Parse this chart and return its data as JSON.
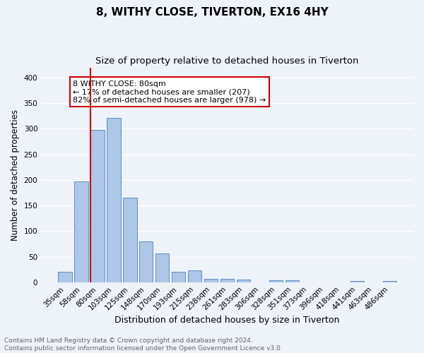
{
  "title": "8, WITHY CLOSE, TIVERTON, EX16 4HY",
  "subtitle": "Size of property relative to detached houses in Tiverton",
  "xlabel": "Distribution of detached houses by size in Tiverton",
  "ylabel": "Number of detached properties",
  "categories": [
    "35sqm",
    "58sqm",
    "80sqm",
    "103sqm",
    "125sqm",
    "148sqm",
    "170sqm",
    "193sqm",
    "215sqm",
    "238sqm",
    "261sqm",
    "283sqm",
    "306sqm",
    "328sqm",
    "351sqm",
    "373sqm",
    "396sqm",
    "418sqm",
    "441sqm",
    "463sqm",
    "486sqm"
  ],
  "values": [
    20,
    197,
    298,
    321,
    165,
    80,
    56,
    21,
    23,
    6,
    6,
    5,
    0,
    4,
    4,
    0,
    0,
    0,
    2,
    0,
    3
  ],
  "bar_color": "#aec6e8",
  "bar_edge_color": "#5a8fc2",
  "highlight_index": 2,
  "highlight_line_color": "#cc0000",
  "annotation_text": "8 WITHY CLOSE: 80sqm\n← 17% of detached houses are smaller (207)\n82% of semi-detached houses are larger (978) →",
  "annotation_box_color": "#ffffff",
  "annotation_box_edge_color": "#cc0000",
  "ylim": [
    0,
    420
  ],
  "yticks": [
    0,
    50,
    100,
    150,
    200,
    250,
    300,
    350,
    400
  ],
  "background_color": "#eef2f9",
  "grid_color": "#ffffff",
  "footer_text": "Contains HM Land Registry data © Crown copyright and database right 2024.\nContains public sector information licensed under the Open Government Licence v3.0.",
  "title_fontsize": 11,
  "subtitle_fontsize": 9.5,
  "xlabel_fontsize": 9,
  "ylabel_fontsize": 8.5,
  "tick_fontsize": 7.5,
  "annotation_fontsize": 8,
  "footer_fontsize": 6.5
}
